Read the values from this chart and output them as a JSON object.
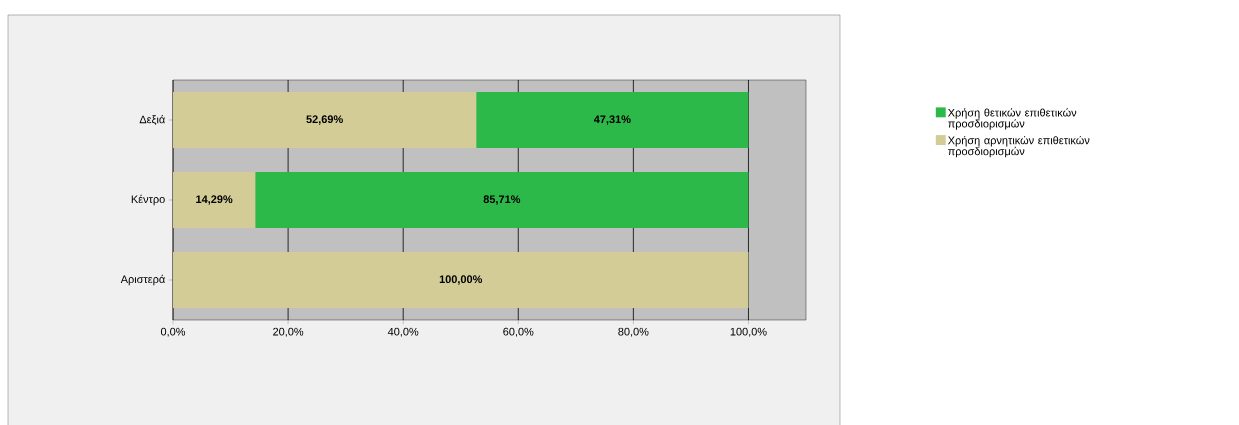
{
  "chart_data": {
    "type": "bar",
    "orientation": "horizontal",
    "stacked": true,
    "categories": [
      "Δεξιά",
      "Κέντρο",
      "Αριστερά"
    ],
    "series": [
      {
        "name": "Χρήση αρνητικών επιθετικών προσδιορισμών",
        "color": "#d3cc97",
        "values": [
          52.69,
          14.29,
          100.0
        ],
        "value_labels": [
          "52,69%",
          "14,29%",
          "100,00%"
        ]
      },
      {
        "name": "Χρήση θετικών επιθετικών προσδιορισμών",
        "color": "#2db84a",
        "values": [
          47.31,
          85.71,
          0
        ],
        "value_labels": [
          "47,31%",
          "85,71%",
          null
        ]
      }
    ],
    "xlim": [
      0,
      110
    ],
    "xticks": [
      {
        "value": 0,
        "label": "0,0%"
      },
      {
        "value": 20,
        "label": "20,0%"
      },
      {
        "value": 40,
        "label": "40,0%"
      },
      {
        "value": 60,
        "label": "60,0%"
      },
      {
        "value": 80,
        "label": "80,0%"
      },
      {
        "value": 100,
        "label": "100,0%"
      }
    ],
    "grid": "x",
    "legend": "right"
  }
}
